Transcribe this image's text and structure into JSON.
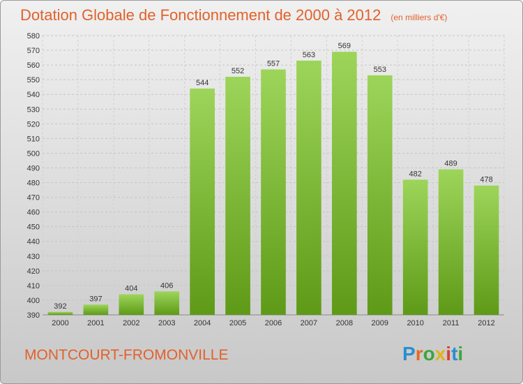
{
  "title": "Dotation Globale de Fonctionnement de 2000 à 2012",
  "unit": "(en milliers d'€)",
  "commune": "MONTCOURT-FROMONVILLE",
  "brand": {
    "letters": [
      "P",
      "r",
      "o",
      "x",
      "i",
      "t",
      "i"
    ],
    "colors": [
      "#2a8fd1",
      "#e46b1f",
      "#3da53a",
      "#e2b21a",
      "#d63f3f",
      "#2a8fd1",
      "#3da53a"
    ]
  },
  "colors": {
    "title": "#e2612a",
    "bar_top": "#9dd55a",
    "bar_bottom": "#5e9a17"
  },
  "chart_data": {
    "type": "bar",
    "categories": [
      "2000",
      "2001",
      "2002",
      "2003",
      "2004",
      "2005",
      "2006",
      "2007",
      "2008",
      "2009",
      "2010",
      "2011",
      "2012"
    ],
    "values": [
      392,
      397,
      404,
      406,
      544,
      552,
      557,
      563,
      569,
      553,
      482,
      489,
      478
    ],
    "ylim": [
      390,
      580
    ],
    "yticks": [
      390,
      400,
      410,
      420,
      430,
      440,
      450,
      460,
      470,
      480,
      490,
      500,
      510,
      520,
      530,
      540,
      550,
      560,
      570,
      580
    ],
    "grid": true
  }
}
